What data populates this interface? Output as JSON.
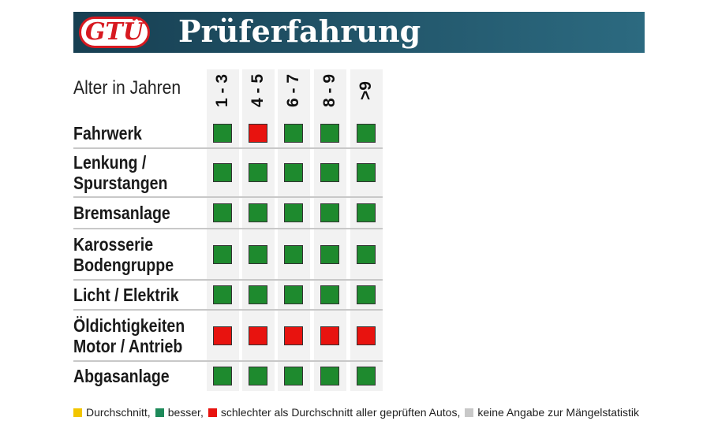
{
  "header": {
    "logo": "GTÜ",
    "title": "Prüferfahrung"
  },
  "table": {
    "corner_label": "Alter in Jahren",
    "columns": [
      "1 - 3",
      "4 - 5",
      "6 - 7",
      "8 - 9",
      ">9"
    ],
    "rows": [
      {
        "label": [
          "Fahrwerk"
        ],
        "cells": [
          "#1e8a2e",
          "#e8130f",
          "#1e8a2e",
          "#1e8a2e",
          "#1e8a2e"
        ]
      },
      {
        "label": [
          "Lenkung /",
          "Spurstangen"
        ],
        "cells": [
          "#1e8a2e",
          "#1e8a2e",
          "#1e8a2e",
          "#1e8a2e",
          "#1e8a2e"
        ]
      },
      {
        "label": [
          "Bremsanlage"
        ],
        "cells": [
          "#1e8a2e",
          "#1e8a2e",
          "#1e8a2e",
          "#1e8a2e",
          "#1e8a2e"
        ]
      },
      {
        "label": [
          "Karosserie",
          "Bodengruppe"
        ],
        "cells": [
          "#1e8a2e",
          "#1e8a2e",
          "#1e8a2e",
          "#1e8a2e",
          "#1e8a2e"
        ]
      },
      {
        "label": [
          "Licht / Elektrik"
        ],
        "cells": [
          "#1e8a2e",
          "#1e8a2e",
          "#1e8a2e",
          "#1e8a2e",
          "#1e8a2e"
        ]
      },
      {
        "label": [
          "Öldichtigkeiten",
          "Motor / Antrieb"
        ],
        "cells": [
          "#e8130f",
          "#e8130f",
          "#e8130f",
          "#e8130f",
          "#e8130f"
        ]
      },
      {
        "label": [
          "Abgasanlage"
        ],
        "cells": [
          "#1e8a2e",
          "#1e8a2e",
          "#1e8a2e",
          "#1e8a2e",
          "#1e8a2e"
        ]
      }
    ]
  },
  "legend": [
    {
      "label": "Durchschnitt,",
      "color": "#f2c500"
    },
    {
      "label": "besser,",
      "color": "#1e8a5a"
    },
    {
      "label": "schlechter als Durchschnitt aller geprüften Autos,",
      "color": "#e8130f"
    },
    {
      "label": "keine Angabe zur Mängelstatistik",
      "color": "#c8c8c8"
    }
  ]
}
